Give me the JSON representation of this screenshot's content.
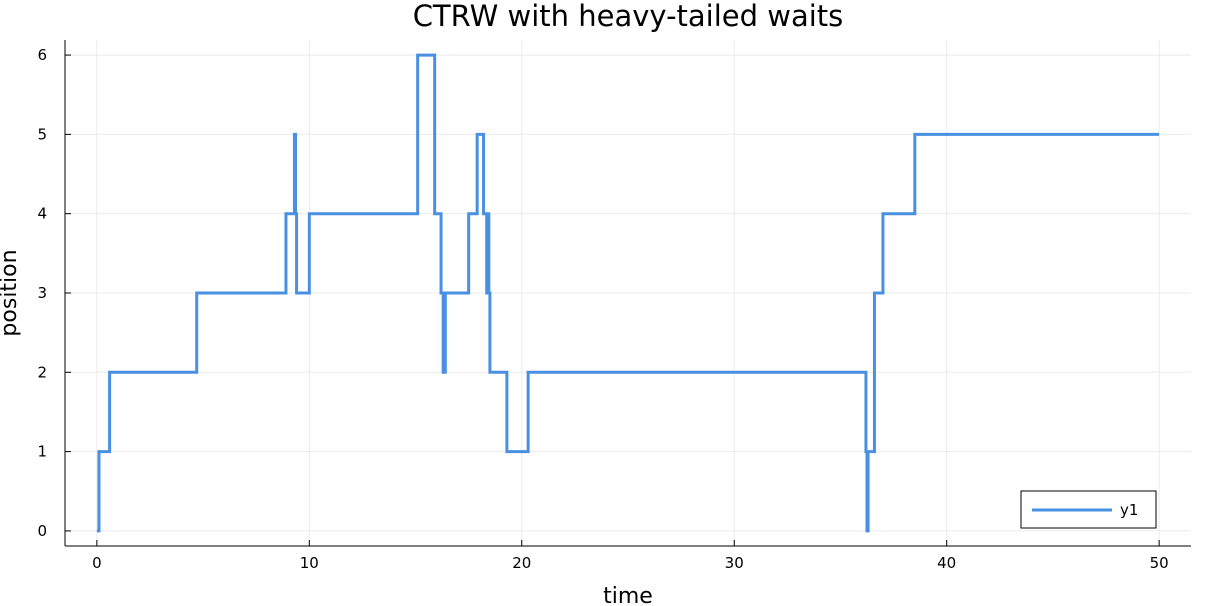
{
  "chart_data": {
    "type": "line",
    "title": "CTRW with heavy-tailed waits",
    "xlabel": "time",
    "ylabel": "position",
    "xlim": [
      -1.5,
      51.5
    ],
    "ylim": [
      -0.19,
      6.19
    ],
    "xticks": [
      0,
      10,
      20,
      30,
      40,
      50
    ],
    "yticks": [
      0,
      1,
      2,
      3,
      4,
      5,
      6
    ],
    "grid": true,
    "legend_position": "bottom-right",
    "series": [
      {
        "name": "y1",
        "color": "#4a90e2",
        "step": "post",
        "x": [
          0.0,
          0.1,
          0.6,
          4.7,
          8.9,
          9.3,
          9.35,
          9.4,
          9.6,
          10.0,
          15.1,
          15.9,
          16.2,
          16.3,
          16.4,
          16.45,
          17.5,
          17.9,
          18.2,
          18.35,
          18.4,
          18.45,
          18.5,
          19.3,
          20.3,
          36.2,
          36.25,
          36.3,
          36.6,
          37.0,
          38.5,
          50.0
        ],
        "values": [
          0,
          1,
          2,
          3,
          4,
          5,
          4,
          3,
          3,
          4,
          6,
          4,
          3,
          2,
          3,
          3,
          4,
          5,
          4,
          3,
          4,
          3,
          2,
          1,
          2,
          1,
          0,
          1,
          3,
          4,
          5,
          5
        ]
      }
    ]
  }
}
